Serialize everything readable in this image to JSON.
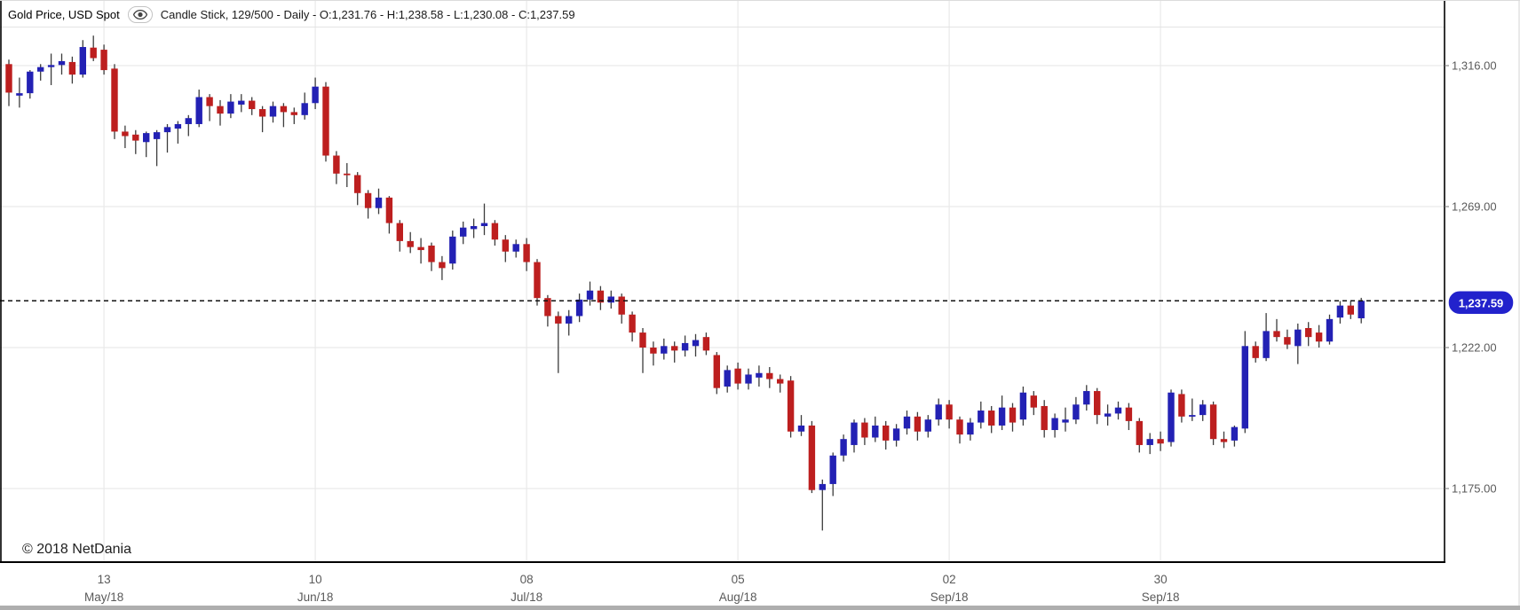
{
  "header": {
    "title": "Gold Price, USD Spot",
    "eye_icon": "eye-icon",
    "series_info": "Candle Stick, 129/500 - Daily - O:1,231.76 - H:1,238.58 - L:1,230.08 - C:1,237.59"
  },
  "copyright": "© 2018 NetDania",
  "colors": {
    "up": "#2321b4",
    "down": "#bd1f1f",
    "wick": "#3c3c3c",
    "grid": "#e9e9e9",
    "axis_text": "#5a5a5a",
    "border": "#000000",
    "dashed_line": "#111111",
    "price_pill_bg": "#2222cc",
    "price_pill_text": "#ffffff"
  },
  "chart_data": {
    "type": "candlestick",
    "instrument": "Gold Price, USD Spot",
    "interval": "Daily",
    "visible_candles": "129/500",
    "last": {
      "open": 1231.76,
      "high": 1238.58,
      "low": 1230.08,
      "close": 1237.59
    },
    "current_price": 1237.59,
    "current_price_label": "1,237.59",
    "y_axis": {
      "gridline_values": [
        1316,
        1269,
        1222,
        1175
      ],
      "gridline_labels": [
        "1,316.00",
        "1,269.00",
        "1,222.00",
        "1,175.00"
      ],
      "visible_range": [
        1150.5,
        1328.7
      ],
      "legend_position": "right"
    },
    "x_ticks": [
      {
        "candle_index": 9,
        "day": "13",
        "month": "May/18"
      },
      {
        "candle_index": 29,
        "day": "10",
        "month": "Jun/18"
      },
      {
        "candle_index": 49,
        "day": "08",
        "month": "Jul/18"
      },
      {
        "candle_index": 69,
        "day": "05",
        "month": "Aug/18"
      },
      {
        "candle_index": 89,
        "day": "02",
        "month": "Sep/18"
      },
      {
        "candle_index": 109,
        "day": "30",
        "month": "Sep/18"
      }
    ],
    "candles": [
      [
        1316.5,
        1318,
        1302.5,
        1307
      ],
      [
        1306,
        1312,
        1302,
        1306.8
      ],
      [
        1306.8,
        1314.5,
        1305,
        1314
      ],
      [
        1314,
        1316.5,
        1311,
        1315.5
      ],
      [
        1315.5,
        1320,
        1309.5,
        1316.2
      ],
      [
        1316.2,
        1320,
        1313,
        1317.5
      ],
      [
        1317.2,
        1319,
        1310,
        1313
      ],
      [
        1313,
        1324.5,
        1312,
        1322.2
      ],
      [
        1322,
        1326,
        1317.5,
        1318.5
      ],
      [
        1321.3,
        1323,
        1313,
        1314.5
      ],
      [
        1315,
        1316.5,
        1291.5,
        1294
      ],
      [
        1294,
        1296,
        1288.5,
        1292.5
      ],
      [
        1293,
        1294.5,
        1286.5,
        1291
      ],
      [
        1290.5,
        1294,
        1285.5,
        1293.5
      ],
      [
        1291.5,
        1294.5,
        1282.5,
        1293.8
      ],
      [
        1293.8,
        1296.5,
        1287,
        1295.5
      ],
      [
        1295,
        1297.5,
        1290,
        1296.5
      ],
      [
        1296.5,
        1299.5,
        1292.5,
        1298.5
      ],
      [
        1296.5,
        1308,
        1295.5,
        1305.5
      ],
      [
        1305.5,
        1306.5,
        1297.5,
        1302.5
      ],
      [
        1302.5,
        1304.5,
        1296,
        1300
      ],
      [
        1300,
        1306.5,
        1298.5,
        1304
      ],
      [
        1303,
        1306.5,
        1300.5,
        1304.3
      ],
      [
        1304.3,
        1305.5,
        1299.5,
        1301.5
      ],
      [
        1301.5,
        1302.5,
        1293.8,
        1299
      ],
      [
        1299,
        1304,
        1297,
        1302.5
      ],
      [
        1302.5,
        1303.5,
        1295.5,
        1300.5
      ],
      [
        1300.5,
        1302,
        1296.5,
        1299.5
      ],
      [
        1299.5,
        1307,
        1298,
        1303.5
      ],
      [
        1303.5,
        1312,
        1301.5,
        1309
      ],
      [
        1309,
        1310.5,
        1284,
        1286
      ],
      [
        1286,
        1287.5,
        1276.5,
        1280
      ],
      [
        1280,
        1283.5,
        1275.5,
        1279.5
      ],
      [
        1279.5,
        1280.5,
        1269.5,
        1273.5
      ],
      [
        1273.5,
        1274.5,
        1265,
        1268.5
      ],
      [
        1268.5,
        1275,
        1266.5,
        1272
      ],
      [
        1272,
        1272.5,
        1260,
        1263.5
      ],
      [
        1263.5,
        1264.5,
        1254,
        1257.5
      ],
      [
        1257.5,
        1260.5,
        1253.5,
        1255.5
      ],
      [
        1255.5,
        1258.5,
        1250,
        1254.5
      ],
      [
        1256,
        1257,
        1247.5,
        1250.5
      ],
      [
        1250.5,
        1252.5,
        1244.5,
        1248.5
      ],
      [
        1250,
        1261,
        1248,
        1259
      ],
      [
        1259,
        1264,
        1256.5,
        1262
      ],
      [
        1261.5,
        1265,
        1258.5,
        1262.5
      ],
      [
        1262.5,
        1270,
        1259.5,
        1263.5
      ],
      [
        1263.5,
        1264.5,
        1256,
        1258
      ],
      [
        1258,
        1259.5,
        1250.5,
        1254
      ],
      [
        1254,
        1258,
        1252,
        1256.5
      ],
      [
        1256.5,
        1258.5,
        1247.5,
        1250.5
      ],
      [
        1250.5,
        1251.5,
        1236,
        1238.5
      ],
      [
        1238.5,
        1239.5,
        1229,
        1232.5
      ],
      [
        1232.5,
        1234,
        1213.5,
        1230
      ],
      [
        1230,
        1234.5,
        1226,
        1232.5
      ],
      [
        1232.5,
        1240,
        1230.5,
        1238
      ],
      [
        1238,
        1244,
        1236,
        1241
      ],
      [
        1241,
        1242.5,
        1234.5,
        1237
      ],
      [
        1237,
        1241,
        1235,
        1239
      ],
      [
        1239,
        1240,
        1230,
        1233
      ],
      [
        1233,
        1234,
        1224,
        1227
      ],
      [
        1227,
        1228.5,
        1213.5,
        1222
      ],
      [
        1222,
        1224,
        1216,
        1220
      ],
      [
        1220,
        1225,
        1218,
        1222.5
      ],
      [
        1222.5,
        1224,
        1217,
        1221
      ],
      [
        1221,
        1226,
        1219,
        1223.5
      ],
      [
        1222.5,
        1226.5,
        1219,
        1224.5
      ],
      [
        1225.5,
        1227,
        1219.5,
        1221
      ],
      [
        1219.5,
        1220.5,
        1206.5,
        1208.5
      ],
      [
        1209,
        1216,
        1207,
        1214.5
      ],
      [
        1215,
        1217,
        1208,
        1210
      ],
      [
        1210,
        1215,
        1208,
        1213
      ],
      [
        1212,
        1216,
        1209,
        1213.5
      ],
      [
        1213.5,
        1215.5,
        1208.5,
        1211.5
      ],
      [
        1211.5,
        1213,
        1207,
        1210
      ],
      [
        1211,
        1212.5,
        1192,
        1194
      ],
      [
        1194,
        1199.5,
        1192.5,
        1196
      ],
      [
        1196,
        1197.5,
        1173.5,
        1174.5
      ],
      [
        1174.5,
        1178,
        1161,
        1176.5
      ],
      [
        1176.5,
        1187,
        1172.5,
        1186
      ],
      [
        1186,
        1193,
        1184,
        1191.5
      ],
      [
        1189.5,
        1198,
        1187,
        1197
      ],
      [
        1197,
        1198.5,
        1189.5,
        1192
      ],
      [
        1192,
        1199,
        1190.5,
        1196
      ],
      [
        1196,
        1197.5,
        1188,
        1191
      ],
      [
        1191,
        1196.5,
        1189,
        1195
      ],
      [
        1195,
        1201,
        1193,
        1199
      ],
      [
        1199,
        1200.5,
        1191,
        1194
      ],
      [
        1194,
        1199.5,
        1192,
        1198
      ],
      [
        1198,
        1205,
        1196,
        1203
      ],
      [
        1203,
        1204.5,
        1195,
        1198
      ],
      [
        1198,
        1199,
        1190,
        1193
      ],
      [
        1193,
        1198.5,
        1191,
        1197
      ],
      [
        1197,
        1204,
        1195,
        1201
      ],
      [
        1201,
        1202.5,
        1193.5,
        1196
      ],
      [
        1196,
        1206,
        1194.5,
        1202
      ],
      [
        1202,
        1203.5,
        1194,
        1197
      ],
      [
        1198,
        1209,
        1196,
        1207
      ],
      [
        1206,
        1207.5,
        1199.5,
        1202
      ],
      [
        1202.5,
        1204.5,
        1192,
        1194.5
      ],
      [
        1194.5,
        1200,
        1192,
        1198.5
      ],
      [
        1197,
        1202,
        1194,
        1198
      ],
      [
        1198,
        1205.5,
        1196.5,
        1203
      ],
      [
        1203,
        1209.5,
        1201,
        1207.5
      ],
      [
        1207.5,
        1208.5,
        1196.5,
        1199.5
      ],
      [
        1199,
        1203,
        1196,
        1200
      ],
      [
        1200,
        1204,
        1198,
        1202
      ],
      [
        1202,
        1203.5,
        1194.5,
        1197.5
      ],
      [
        1197.5,
        1198.5,
        1187,
        1189.5
      ],
      [
        1189.5,
        1193.5,
        1186.5,
        1191.5
      ],
      [
        1191.5,
        1194,
        1187.5,
        1190
      ],
      [
        1190.5,
        1208,
        1189,
        1207
      ],
      [
        1206.5,
        1208,
        1197,
        1199
      ],
      [
        1199,
        1205,
        1197.5,
        1199.5
      ],
      [
        1199.5,
        1204.5,
        1197.5,
        1203
      ],
      [
        1203,
        1204,
        1189.5,
        1191.5
      ],
      [
        1191.5,
        1194,
        1188.5,
        1190.5
      ],
      [
        1191,
        1196,
        1189,
        1195.5
      ],
      [
        1195,
        1227.5,
        1193.5,
        1222.5
      ],
      [
        1222.5,
        1224,
        1217,
        1218.5
      ],
      [
        1218.5,
        1233.5,
        1217.5,
        1227.5
      ],
      [
        1227.5,
        1231.5,
        1224,
        1225.5
      ],
      [
        1225.5,
        1228,
        1221.5,
        1223
      ],
      [
        1222.5,
        1230,
        1216.5,
        1228
      ],
      [
        1228.5,
        1230.5,
        1222.5,
        1225.5
      ],
      [
        1227,
        1229.5,
        1222,
        1224
      ],
      [
        1224,
        1233,
        1223,
        1231.5
      ],
      [
        1232,
        1237.5,
        1230,
        1236
      ],
      [
        1236,
        1237.5,
        1231.5,
        1233
      ],
      [
        1231.76,
        1238.58,
        1230.08,
        1237.59
      ]
    ]
  }
}
